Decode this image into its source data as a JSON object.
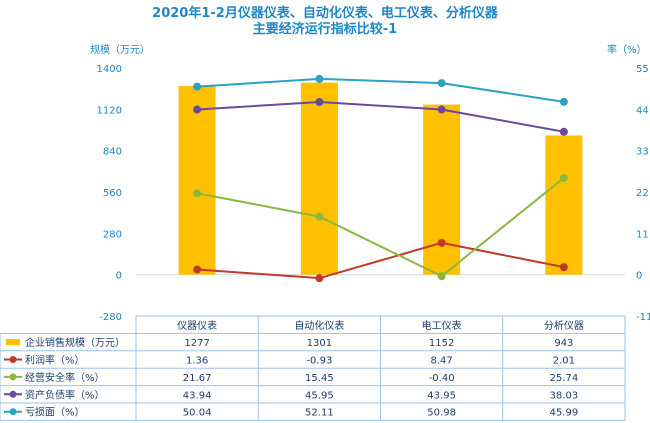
{
  "title": "2020年1-2月仪器仪表、自动化仪表、电工仪表、分析仪器",
  "subtitle": "主要经济运行指标比较-1",
  "chart_data": {
    "type": "bar",
    "title": "2020年1-2月仪器仪表、自动化仪表、电工仪表、分析仪器 主要经济运行指标比较-1",
    "categories": [
      "仪器仪表",
      "自动化仪表",
      "电工仪表",
      "分析仪器"
    ],
    "ylabel": "规模（万元）",
    "y2label": "率（%）",
    "ylim": [
      -280,
      1400
    ],
    "y2lim": [
      -11,
      55
    ],
    "yticks": [
      "1400",
      "1120",
      "840",
      "560",
      "280",
      "0",
      "-280"
    ],
    "y2ticks": [
      "55",
      "44",
      "33",
      "22",
      "11",
      "0",
      "-11"
    ],
    "grid": false,
    "legend": "table-bottom",
    "bar_series": {
      "name": "企业销售规模（万元）",
      "color": "#ffc000",
      "values": [
        1277,
        1301,
        1152,
        943
      ],
      "labels": [
        "1277",
        "1301",
        "1152",
        "943"
      ]
    },
    "line_series": [
      {
        "name": "利润率（%）",
        "color": "#c0392b",
        "values": [
          1.36,
          -0.93,
          8.47,
          2.01
        ],
        "labels": [
          "1.36",
          "-0.93",
          "8.47",
          "2.01"
        ]
      },
      {
        "name": "经营安全率（%）",
        "color": "#8cb840",
        "values": [
          21.67,
          15.45,
          -0.4,
          25.74
        ],
        "labels": [
          "21.67",
          "15.45",
          "-0.40",
          "25.74"
        ]
      },
      {
        "name": "资产负债率（%）",
        "color": "#6a4a9c",
        "values": [
          43.94,
          45.95,
          43.95,
          38.03
        ],
        "labels": [
          "43.94",
          "45.95",
          "43.95",
          "38.03"
        ]
      },
      {
        "name": "亏损面（%）",
        "color": "#2aa2c4",
        "values": [
          50.04,
          52.11,
          50.98,
          45.99
        ],
        "labels": [
          "50.04",
          "52.11",
          "50.98",
          "45.99"
        ]
      }
    ]
  }
}
